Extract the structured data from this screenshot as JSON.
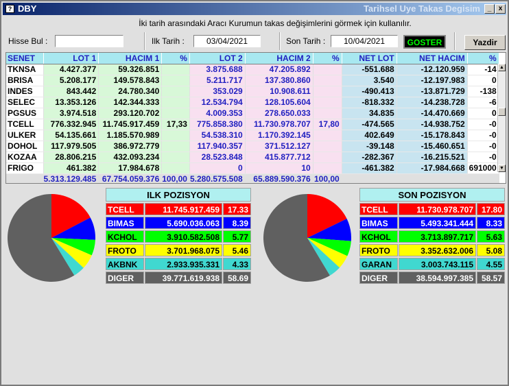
{
  "window": {
    "app_name": "DBY",
    "title": "Tarihsel Uye Takas Degisim",
    "min_glyph": "_",
    "close_glyph": "x"
  },
  "hint": "İki tarih arasındaki  Aracı Kurumun takas değişimlerini görmek için kullanılır.",
  "toolbar": {
    "hisse_label": "Hisse Bul :",
    "hisse_value": "",
    "ilk_label": "Ilk Tarih :",
    "ilk_value": "03/04/2021",
    "son_label": "Son Tarih :",
    "son_value": "10/04/2021",
    "goster_label": "GOSTER",
    "yazdir_label": "Yazdir"
  },
  "table": {
    "headers": [
      "SENET",
      "LOT 1",
      "HACIM 1",
      "%",
      "LOT 2",
      "HACIM 2",
      "%",
      "NET LOT",
      "NET HACIM",
      "%"
    ],
    "rows": [
      [
        "TKNSA",
        "4.427.377",
        "59.326.851",
        "",
        "3.875.688",
        "47.205.892",
        "",
        "-551.688",
        "-12.120.959",
        "-14"
      ],
      [
        "BRISA",
        "5.208.177",
        "149.578.843",
        "",
        "5.211.717",
        "137.380.860",
        "",
        "3.540",
        "-12.197.983",
        "0"
      ],
      [
        "INDES",
        "843.442",
        "24.780.340",
        "",
        "353.029",
        "10.908.611",
        "",
        "-490.413",
        "-13.871.729",
        "-138"
      ],
      [
        "SELEC",
        "13.353.126",
        "142.344.333",
        "",
        "12.534.794",
        "128.105.604",
        "",
        "-818.332",
        "-14.238.728",
        "-6"
      ],
      [
        "PGSUS",
        "3.974.518",
        "293.120.702",
        "",
        "4.009.353",
        "278.650.033",
        "",
        "34.835",
        "-14.470.669",
        "0"
      ],
      [
        "TCELL",
        "776.332.945",
        "11.745.917.459",
        "17,33",
        "775.858.380",
        "11.730.978.707",
        "17,80",
        "-474.565",
        "-14.938.752",
        "-0"
      ],
      [
        "ULKER",
        "54.135.661",
        "1.185.570.989",
        "",
        "54.538.310",
        "1.170.392.145",
        "",
        "402.649",
        "-15.178.843",
        "-0"
      ],
      [
        "DOHOL",
        "117.979.505",
        "386.972.779",
        "",
        "117.940.357",
        "371.512.127",
        "",
        "-39.148",
        "-15.460.651",
        "-0"
      ],
      [
        "KOZAA",
        "28.806.215",
        "432.093.234",
        "",
        "28.523.848",
        "415.877.712",
        "",
        "-282.367",
        "-16.215.521",
        "-0"
      ],
      [
        "FRIGO",
        "461.382",
        "17.984.678",
        "",
        "0",
        "10",
        "",
        "-461.382",
        "-17.984.668",
        "691000"
      ]
    ],
    "totals": [
      "",
      "5.313.129.485",
      "67.754.059.376",
      "100,00",
      "5.280.575.508",
      "65.889.590.376",
      "100,00",
      "",
      "",
      ""
    ]
  },
  "ilk_pozisyon": {
    "title": "ILK POZISYON",
    "rows": [
      {
        "name": "TCELL",
        "value": "11.745.917.459",
        "pct": "17.33",
        "color": "#ff0000",
        "text": "#ffffff",
        "share": 17.33
      },
      {
        "name": "BIMAS",
        "value": "5.690.036.063",
        "pct": "8.39",
        "color": "#0000ff",
        "text": "#ffffff",
        "share": 8.39
      },
      {
        "name": "KCHOL",
        "value": "3.910.582.508",
        "pct": "5.77",
        "color": "#00ff00",
        "text": "#000000",
        "share": 5.77
      },
      {
        "name": "FROTO",
        "value": "3.701.968.075",
        "pct": "5.46",
        "color": "#ffff00",
        "text": "#000000",
        "share": 5.46
      },
      {
        "name": "AKBNK",
        "value": "2.933.935.331",
        "pct": "4.33",
        "color": "#40d8d0",
        "text": "#000000",
        "share": 4.33
      },
      {
        "name": "DIGER",
        "value": "39.771.619.938",
        "pct": "58.69",
        "color": "#606060",
        "text": "#ffffff",
        "share": 58.69
      }
    ]
  },
  "son_pozisyon": {
    "title": "SON POZISYON",
    "rows": [
      {
        "name": "TCELL",
        "value": "11.730.978.707",
        "pct": "17.80",
        "color": "#ff0000",
        "text": "#ffffff",
        "share": 17.8
      },
      {
        "name": "BIMAS",
        "value": "5.493.341.444",
        "pct": "8.33",
        "color": "#0000ff",
        "text": "#ffffff",
        "share": 8.33
      },
      {
        "name": "KCHOL",
        "value": "3.713.897.717",
        "pct": "5.63",
        "color": "#00ff00",
        "text": "#000000",
        "share": 5.63
      },
      {
        "name": "FROTO",
        "value": "3.352.632.006",
        "pct": "5.08",
        "color": "#ffff00",
        "text": "#000000",
        "share": 5.08
      },
      {
        "name": "GARAN",
        "value": "3.003.743.115",
        "pct": "4.55",
        "color": "#40d8d0",
        "text": "#000000",
        "share": 4.55
      },
      {
        "name": "DIGER",
        "value": "38.594.997.385",
        "pct": "58.57",
        "color": "#606060",
        "text": "#ffffff",
        "share": 58.57
      }
    ]
  }
}
